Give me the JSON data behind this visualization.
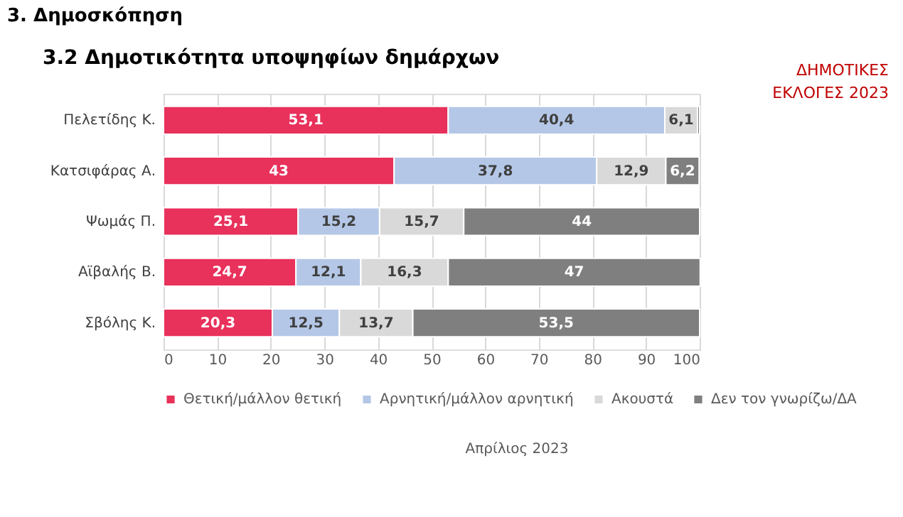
{
  "chart_data": {
    "type": "bar",
    "orientation": "horizontal",
    "stacked": true,
    "title": "3.2 Δημοτικότητα υποψηφίων δημάρχων",
    "annotations": [
      "3. Δημοσκόπηση",
      "ΔΗΜΟΤΙΚΕΣ ΕΚΛΟΓΕΣ 2023",
      "Απρίλιος 2023"
    ],
    "categories": [
      "Πελετίδης Κ.",
      "Κατσιφάρας Α.",
      "Ψωμάς Π.",
      "Αϊβαλής Β.",
      "Σβόλης Κ."
    ],
    "series": [
      {
        "name": "Θετική/μάλλον θετική",
        "color": "#e8315b",
        "values": [
          53.1,
          43,
          25.1,
          24.7,
          20.3
        ],
        "value_labels": [
          "53,1",
          "43",
          "25,1",
          "24,7",
          "20,3"
        ]
      },
      {
        "name": "Αρνητική/μάλλον αρνητική",
        "color": "#b4c7e7",
        "values": [
          40.4,
          37.8,
          15.2,
          12.1,
          12.5
        ],
        "value_labels": [
          "40,4",
          "37,8",
          "15,2",
          "12,1",
          "12,5"
        ]
      },
      {
        "name": "Ακουστά",
        "color": "#d9d9d9",
        "values": [
          6.1,
          12.9,
          15.7,
          16.3,
          13.7
        ],
        "value_labels": [
          "6,1",
          "12,9",
          "15,7",
          "16,3",
          "13,7"
        ]
      },
      {
        "name": "Δεν τον γνωρίζω/ΔΑ",
        "color": "#7f7f7f",
        "values": [
          0.4,
          6.2,
          44,
          47,
          53.5
        ],
        "value_labels": [
          null,
          "6,2",
          "44",
          "47",
          "53,5"
        ]
      }
    ],
    "xlim": [
      0,
      100
    ],
    "xticks": [
      0,
      10,
      20,
      30,
      40,
      50,
      60,
      70,
      80,
      90,
      100
    ],
    "grid": "x",
    "legend": "bottom"
  }
}
